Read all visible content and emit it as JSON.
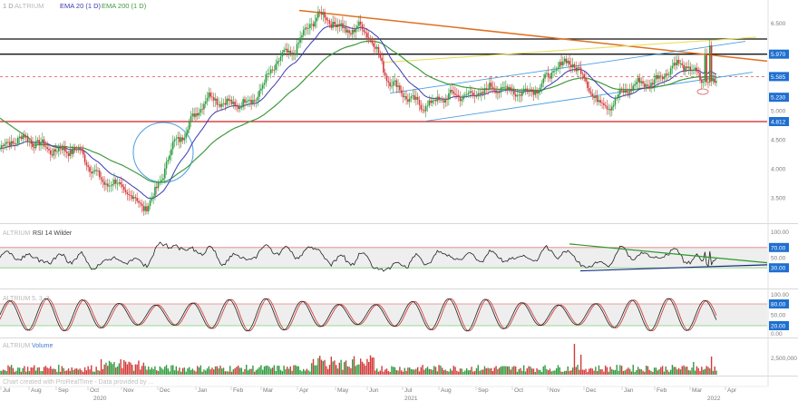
{
  "header": {
    "symbol_period": "1 D",
    "symbol_name": "ALTRIUM",
    "ema20_label": "EMA 20",
    "ema20_period": "(1 D)",
    "ema200_label": "EMA 200",
    "ema200_period": "(1 D)"
  },
  "colors": {
    "candle_up": "#2e9b3e",
    "candle_down": "#d23a3a",
    "ema20": "#3a3ab0",
    "ema200": "#3e9a3e",
    "downtrend": "#e07020",
    "support": "#d02020",
    "resistance": "#111111",
    "channel": "#4aa0e0",
    "yellow_line": "#e8e060",
    "price_tag_blue": "#1e6fd0",
    "price_tag_red": "#d02020"
  },
  "main_price_labels": [
    {
      "text": "5.230",
      "style": "blue"
    },
    {
      "text": "5.970",
      "style": "blue"
    },
    {
      "text": "5.585",
      "style": "blue"
    },
    {
      "text": "4.812",
      "style": "blue"
    }
  ],
  "main_ticks": [
    "6.500",
    "6.000",
    "5.000",
    "4.500",
    "4.000",
    "3.500"
  ],
  "rsi": {
    "label": "RSI 14 Wilder",
    "source": "ALTRIUM",
    "ticks": [
      "100.00",
      "50.00"
    ],
    "levels": [
      "70.00",
      "30.00"
    ]
  },
  "stoch": {
    "source": "ALTRIUM",
    "params": "5, 3, 3",
    "ticks": [
      "100.00",
      "50.00",
      "0.00"
    ],
    "levels": [
      "80.00",
      "20.00"
    ]
  },
  "volume": {
    "source": "ALTRIUM",
    "label": "Volume",
    "ticks": [
      "2,500,000"
    ]
  },
  "footer_note": "Chart created with ProRealTime - Data provided by ...",
  "x_months": [
    "Jul",
    "Aug",
    "Sep",
    "Oct",
    "Nov",
    "Dec",
    "Jan",
    "Feb",
    "Mar",
    "Apr",
    "May",
    "Jun",
    "Jul",
    "Aug",
    "Sep",
    "Oct",
    "Nov",
    "Dec",
    "Jan",
    "Feb",
    "Mar",
    "Apr"
  ],
  "x_years": [
    "2020",
    "2021",
    "2022"
  ],
  "chart_data": {
    "type": "candlestick",
    "price_axis_ticks": [
      3.5,
      4.0,
      4.5,
      5.0,
      5.5,
      6.0,
      6.5
    ],
    "horizontal_levels": [
      {
        "value": 6.23,
        "kind": "resistance"
      },
      {
        "value": 5.97,
        "kind": "resistance"
      },
      {
        "value": 5.585,
        "kind": "dashed"
      },
      {
        "value": 4.812,
        "kind": "support"
      }
    ],
    "close_points": [
      [
        "2020-07",
        4.35
      ],
      [
        "2020-08",
        4.5
      ],
      [
        "2020-09",
        4.25
      ],
      [
        "2020-10",
        3.85
      ],
      [
        "2020-11",
        3.3
      ],
      [
        "2020-12",
        4.55
      ],
      [
        "2021-01",
        5.25
      ],
      [
        "2021-02",
        5.1
      ],
      [
        "2021-03",
        6.05
      ],
      [
        "2021-04",
        6.55
      ],
      [
        "2021-05",
        6.45
      ],
      [
        "2021-06",
        5.45
      ],
      [
        "2021-07",
        5.05
      ],
      [
        "2021-08",
        5.35
      ],
      [
        "2021-09",
        5.3
      ],
      [
        "2021-10",
        5.45
      ],
      [
        "2021-11",
        5.8
      ],
      [
        "2021-12",
        5.05
      ],
      [
        "2022-01",
        5.55
      ],
      [
        "2022-02",
        5.7
      ],
      [
        "2022-03",
        5.55
      ]
    ],
    "volume_ticks": [
      2500000
    ]
  }
}
